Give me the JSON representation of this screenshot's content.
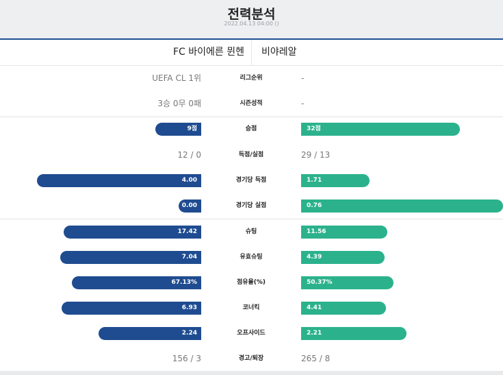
{
  "header": {
    "title": "전력분석",
    "datetime": "2022.04.13 04:00 ()"
  },
  "teams": {
    "home": "FC 바이에른 뮌헨",
    "away": "비야레알"
  },
  "colors": {
    "home_bar": "#1f4c90",
    "away_bar": "#2bb28c",
    "header_bg": "#eeeff1",
    "header_border": "#1d4f93"
  },
  "rows": [
    {
      "label": "리그순위",
      "home": "UEFA CL 1위",
      "away": "-",
      "bar": false
    },
    {
      "label": "시즌성적",
      "home": "3승 0무 0패",
      "away": "-",
      "bar": false
    },
    {
      "label": "승점",
      "home": "9점",
      "away": "32점",
      "bar": true,
      "home_level": 0.227,
      "away_level": 0.788
    },
    {
      "label": "득점/실점",
      "home": "12 / 0",
      "away": "29 / 13",
      "bar": false
    },
    {
      "label": "경기당 득점",
      "home": "4.00",
      "away": "1.71",
      "bar": true,
      "home_level": 0.815,
      "away_level": 0.339
    },
    {
      "label": "경기당 실점",
      "home": "0.00",
      "away": "0.76",
      "bar": true,
      "home_level": 0.112,
      "away_level": 1.0
    },
    {
      "label": "슈팅",
      "home": "17.42",
      "away": "11.56",
      "bar": true,
      "home_level": 0.682,
      "away_level": 0.427
    },
    {
      "label": "유효슈팅",
      "home": "7.04",
      "away": "4.39",
      "bar": true,
      "home_level": 0.7,
      "away_level": 0.413
    },
    {
      "label": "점유율(%)",
      "home": "67.13%",
      "away": "50.37%",
      "bar": true,
      "home_level": 0.642,
      "away_level": 0.458
    },
    {
      "label": "코너킥",
      "home": "6.93",
      "away": "4.41",
      "bar": true,
      "home_level": 0.694,
      "away_level": 0.42
    },
    {
      "label": "오프사이드",
      "home": "2.24",
      "away": "2.21",
      "bar": true,
      "home_level": 0.509,
      "away_level": 0.522
    },
    {
      "label": "경고/퇴장",
      "home": "156 / 3",
      "away": "265 / 8",
      "bar": false
    }
  ]
}
